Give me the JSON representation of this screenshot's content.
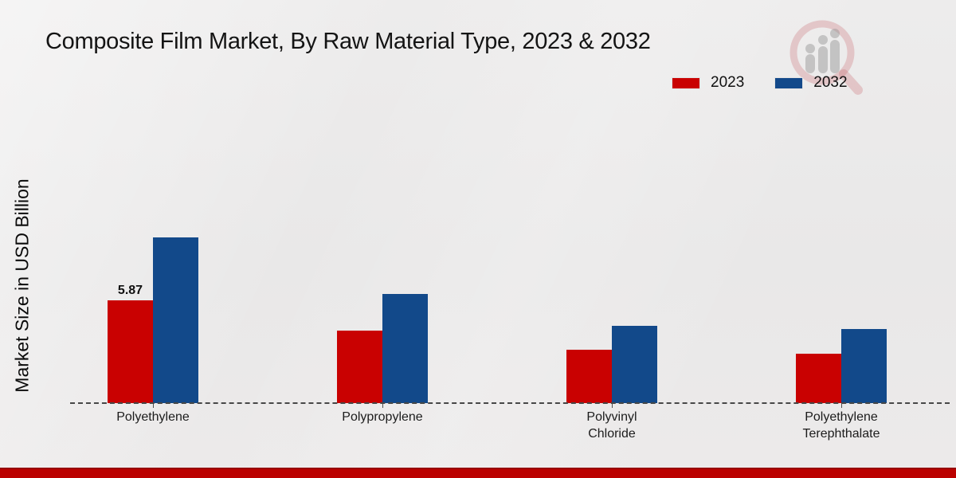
{
  "page": {
    "title": "Composite Film Market, By Raw Material Type, 2023 & 2032",
    "ylabel": "Market Size in USD Billion"
  },
  "legend": {
    "items": [
      {
        "label": "2023",
        "color": "#c90101"
      },
      {
        "label": "2032",
        "color": "#12498a"
      }
    ]
  },
  "colors": {
    "series_2023": "#c90101",
    "series_2032": "#12498a",
    "footer_bar": "#bb0100",
    "background": "#eaeaea",
    "axis_dash": "#474747"
  },
  "chart_data": {
    "type": "bar",
    "title": "Composite Film Market, By Raw Material Type, 2023 & 2032",
    "xlabel": "",
    "ylabel": "Market Size in USD Billion",
    "categories": [
      "Polyethylene",
      "Polypropylene",
      "Polyvinyl\nChloride",
      "Polyethylene\nTerephthalate"
    ],
    "series": [
      {
        "name": "2023",
        "color": "#c90101",
        "values": [
          5.87,
          4.15,
          3.05,
          2.8
        ],
        "data_labels": [
          "5.87",
          "",
          "",
          ""
        ]
      },
      {
        "name": "2032",
        "color": "#12498a",
        "values": [
          9.45,
          6.2,
          4.4,
          4.2
        ],
        "data_labels": [
          "",
          "",
          "",
          ""
        ]
      }
    ],
    "ylim": [
      0,
      11
    ],
    "grid": "off",
    "axis_style": "dashed baseline only, no y-axis ticks or values",
    "legend_position": "top-right"
  },
  "watermark": {
    "name": "magnifier-bar-chart-logo"
  }
}
